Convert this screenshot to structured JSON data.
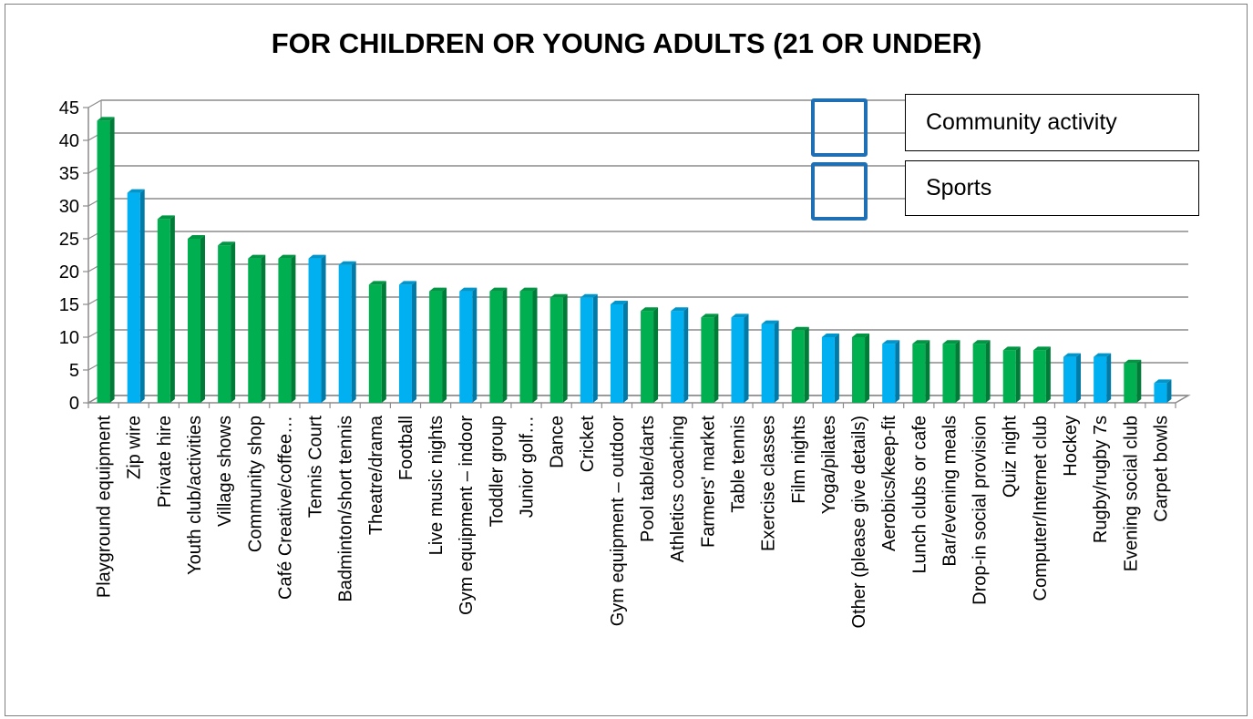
{
  "chart_data": {
    "type": "bar",
    "title": "FOR CHILDREN OR YOUNG ADULTS (21 OR UNDER)",
    "xlabel": "",
    "ylabel": "",
    "ylim": [
      0,
      45
    ],
    "yticks": [
      0,
      5,
      10,
      15,
      20,
      25,
      30,
      35,
      40,
      45
    ],
    "grid": true,
    "legend_position": "top-right",
    "legend": [
      {
        "name": "Community activity",
        "color": "#00b050"
      },
      {
        "name": "Sports",
        "color": "#00b0f0"
      }
    ],
    "categories": [
      "Playground equipment",
      "Zip wire",
      "Private hire",
      "Youth club/activities",
      "Village shows",
      "Community shop",
      "Café Creative/coffee…",
      "Tennis Court",
      "Badminton/short tennis",
      "Theatre/drama",
      "Football",
      "Live music nights",
      "Gym equipment – indoor",
      "Toddler group",
      "Junior golf…",
      "Dance",
      "Cricket",
      "Gym equipment – outdoor",
      "Pool table/darts",
      "Athletics coaching",
      "Farmers' market",
      "Table tennis",
      "Exercise classes",
      "Film nights",
      "Yoga/pilates",
      "Other (please give details)",
      "Aerobics/keep-fit",
      "Lunch clubs or cafe",
      "Bar/evening meals",
      "Drop-in social provision",
      "Quiz night",
      "Computer/Internet club",
      "Hockey",
      "Rugby/rugby 7s",
      "Evening social club",
      "Carpet bowls"
    ],
    "values": [
      43,
      32,
      28,
      25,
      24,
      22,
      22,
      22,
      21,
      18,
      18,
      17,
      17,
      17,
      17,
      16,
      16,
      15,
      14,
      14,
      13,
      13,
      12,
      11,
      10,
      10,
      9,
      9,
      9,
      9,
      8,
      8,
      7,
      7,
      6,
      3
    ],
    "groups": [
      "Community activity",
      "Sports",
      "Community activity",
      "Community activity",
      "Community activity",
      "Community activity",
      "Community activity",
      "Sports",
      "Sports",
      "Community activity",
      "Sports",
      "Community activity",
      "Sports",
      "Community activity",
      "Community activity",
      "Community activity",
      "Sports",
      "Sports",
      "Community activity",
      "Sports",
      "Community activity",
      "Sports",
      "Sports",
      "Community activity",
      "Sports",
      "Community activity",
      "Sports",
      "Community activity",
      "Community activity",
      "Community activity",
      "Community activity",
      "Community activity",
      "Sports",
      "Sports",
      "Community activity",
      "Sports"
    ]
  }
}
